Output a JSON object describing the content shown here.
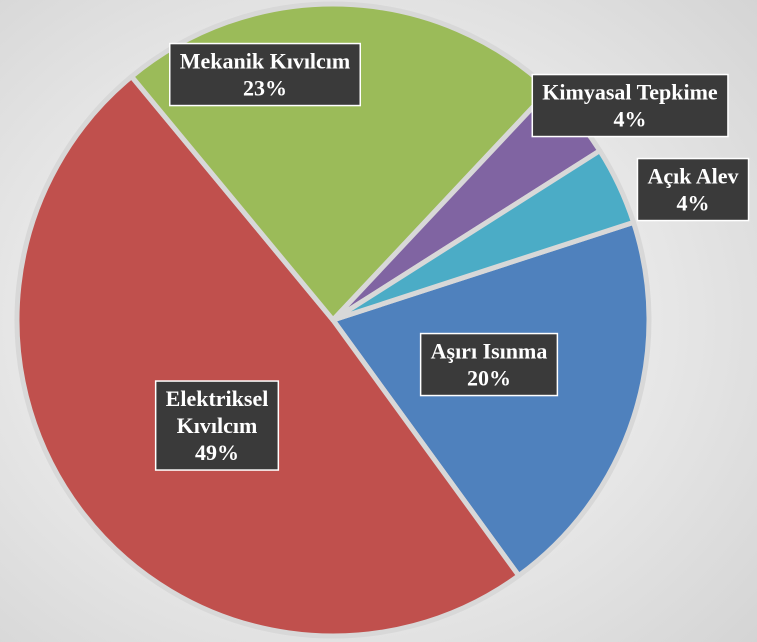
{
  "chart_data": {
    "type": "pie",
    "categories": [
      "Aşırı Isınma",
      "Elektriksel Kıvılcım",
      "Mekanik Kıvılcım",
      "Kimyasal Tepkime",
      "Açık Alev"
    ],
    "values": [
      20,
      49,
      23,
      4,
      4
    ],
    "value_labels": [
      "20%",
      "49%",
      "23%",
      "4%",
      "4%"
    ],
    "colors": [
      "#4f81bd",
      "#c0504d",
      "#9bbb59",
      "#8064a2",
      "#4bacc6"
    ]
  }
}
